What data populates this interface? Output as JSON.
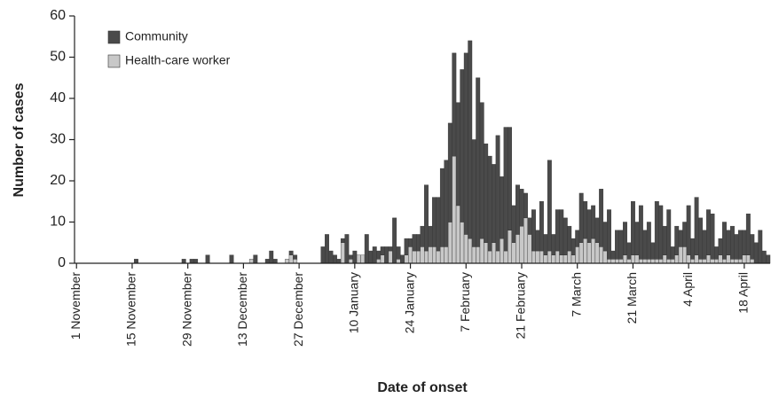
{
  "chart_data": {
    "type": "stacked_bar",
    "xlabel": "Date of onset",
    "ylabel": "Number of cases",
    "categories": [
      "1 November",
      null,
      null,
      null,
      null,
      null,
      null,
      null,
      null,
      null,
      null,
      null,
      null,
      null,
      "15 November",
      null,
      null,
      null,
      null,
      null,
      null,
      null,
      null,
      null,
      null,
      null,
      null,
      null,
      "29 November",
      null,
      null,
      null,
      null,
      null,
      null,
      null,
      null,
      null,
      null,
      null,
      null,
      null,
      "13 December",
      null,
      null,
      null,
      null,
      null,
      null,
      null,
      null,
      null,
      null,
      null,
      null,
      null,
      "27 December",
      null,
      null,
      null,
      null,
      null,
      null,
      null,
      null,
      null,
      null,
      null,
      null,
      null,
      "10 January",
      null,
      null,
      null,
      null,
      null,
      null,
      null,
      null,
      null,
      null,
      null,
      null,
      null,
      "24 January",
      null,
      null,
      null,
      null,
      null,
      null,
      null,
      null,
      null,
      null,
      null,
      null,
      null,
      "7 February",
      null,
      null,
      null,
      null,
      null,
      null,
      null,
      null,
      null,
      null,
      null,
      null,
      null,
      "21 February",
      null,
      null,
      null,
      null,
      null,
      null,
      null,
      null,
      null,
      null,
      null,
      null,
      null,
      "7 March",
      null,
      null,
      null,
      null,
      null,
      null,
      null,
      null,
      null,
      null,
      null,
      null,
      null,
      "21 March",
      null,
      null,
      null,
      null,
      null,
      null,
      null,
      null,
      null,
      null,
      null,
      null,
      null,
      "4 April",
      null,
      null,
      null,
      null,
      null,
      null,
      null,
      null,
      null,
      null,
      null,
      null,
      null,
      "18 April",
      null,
      null,
      null,
      null,
      null,
      null
    ],
    "series": [
      {
        "name": "Health-care worker",
        "color": "#c8c8c8",
        "values": [
          0,
          0,
          0,
          0,
          0,
          0,
          0,
          0,
          0,
          0,
          0,
          0,
          0,
          0,
          0,
          0,
          0,
          0,
          0,
          0,
          0,
          0,
          0,
          0,
          0,
          0,
          0,
          0,
          0,
          0,
          0,
          0,
          0,
          0,
          0,
          0,
          0,
          0,
          0,
          0,
          0,
          0,
          0,
          0,
          1,
          0,
          0,
          0,
          0,
          0,
          0,
          0,
          0,
          1,
          2,
          1,
          0,
          0,
          0,
          0,
          0,
          0,
          0,
          0,
          0,
          0,
          0,
          5,
          0,
          1,
          0,
          2,
          2,
          0,
          0,
          0,
          1,
          2,
          0,
          3,
          0,
          1,
          0,
          2,
          4,
          3,
          3,
          4,
          3,
          4,
          4,
          3,
          4,
          4,
          10,
          26,
          14,
          10,
          7,
          6,
          4,
          4,
          6,
          5,
          3,
          5,
          3,
          6,
          3,
          8,
          5,
          7,
          9,
          11,
          7,
          3,
          3,
          3,
          2,
          3,
          2,
          3,
          2,
          2,
          3,
          2,
          4,
          5,
          6,
          5,
          6,
          5,
          4,
          3,
          1,
          1,
          1,
          1,
          2,
          1,
          2,
          2,
          1,
          1,
          1,
          1,
          1,
          1,
          2,
          1,
          1,
          2,
          4,
          4,
          2,
          1,
          2,
          1,
          1,
          2,
          1,
          1,
          2,
          1,
          2,
          1,
          1,
          1,
          2,
          2,
          1,
          0,
          0,
          0,
          0
        ]
      },
      {
        "name": "Community",
        "color": "#4a4a4a",
        "values": [
          0,
          0,
          0,
          0,
          0,
          0,
          0,
          0,
          0,
          0,
          0,
          0,
          0,
          0,
          0,
          1,
          0,
          0,
          0,
          0,
          0,
          0,
          0,
          0,
          0,
          0,
          0,
          1,
          0,
          1,
          1,
          0,
          0,
          2,
          0,
          0,
          0,
          0,
          0,
          2,
          0,
          0,
          0,
          0,
          0,
          2,
          0,
          0,
          1,
          3,
          1,
          0,
          0,
          0,
          1,
          1,
          0,
          0,
          0,
          0,
          0,
          0,
          4,
          7,
          3,
          2,
          1,
          1,
          7,
          1,
          3,
          0,
          0,
          7,
          3,
          4,
          2,
          2,
          4,
          1,
          11,
          3,
          2,
          4,
          2,
          4,
          4,
          5,
          16,
          5,
          12,
          13,
          19,
          21,
          24,
          25,
          25,
          37,
          44,
          48,
          26,
          41,
          33,
          24,
          23,
          19,
          28,
          15,
          30,
          25,
          9,
          12,
          9,
          6,
          4,
          10,
          5,
          12,
          5,
          22,
          5,
          10,
          11,
          9,
          6,
          4,
          4,
          12,
          9,
          8,
          8,
          6,
          14,
          7,
          12,
          2,
          7,
          7,
          8,
          4,
          13,
          8,
          13,
          7,
          9,
          4,
          14,
          13,
          7,
          12,
          3,
          7,
          4,
          6,
          12,
          5,
          14,
          10,
          7,
          11,
          11,
          3,
          4,
          9,
          6,
          8,
          6,
          7,
          6,
          10,
          6,
          5,
          8,
          3,
          2
        ]
      }
    ],
    "ylim": [
      0,
      60
    ],
    "yticks": [
      0,
      10,
      20,
      30,
      40,
      50,
      60
    ],
    "legend": "upper left"
  }
}
